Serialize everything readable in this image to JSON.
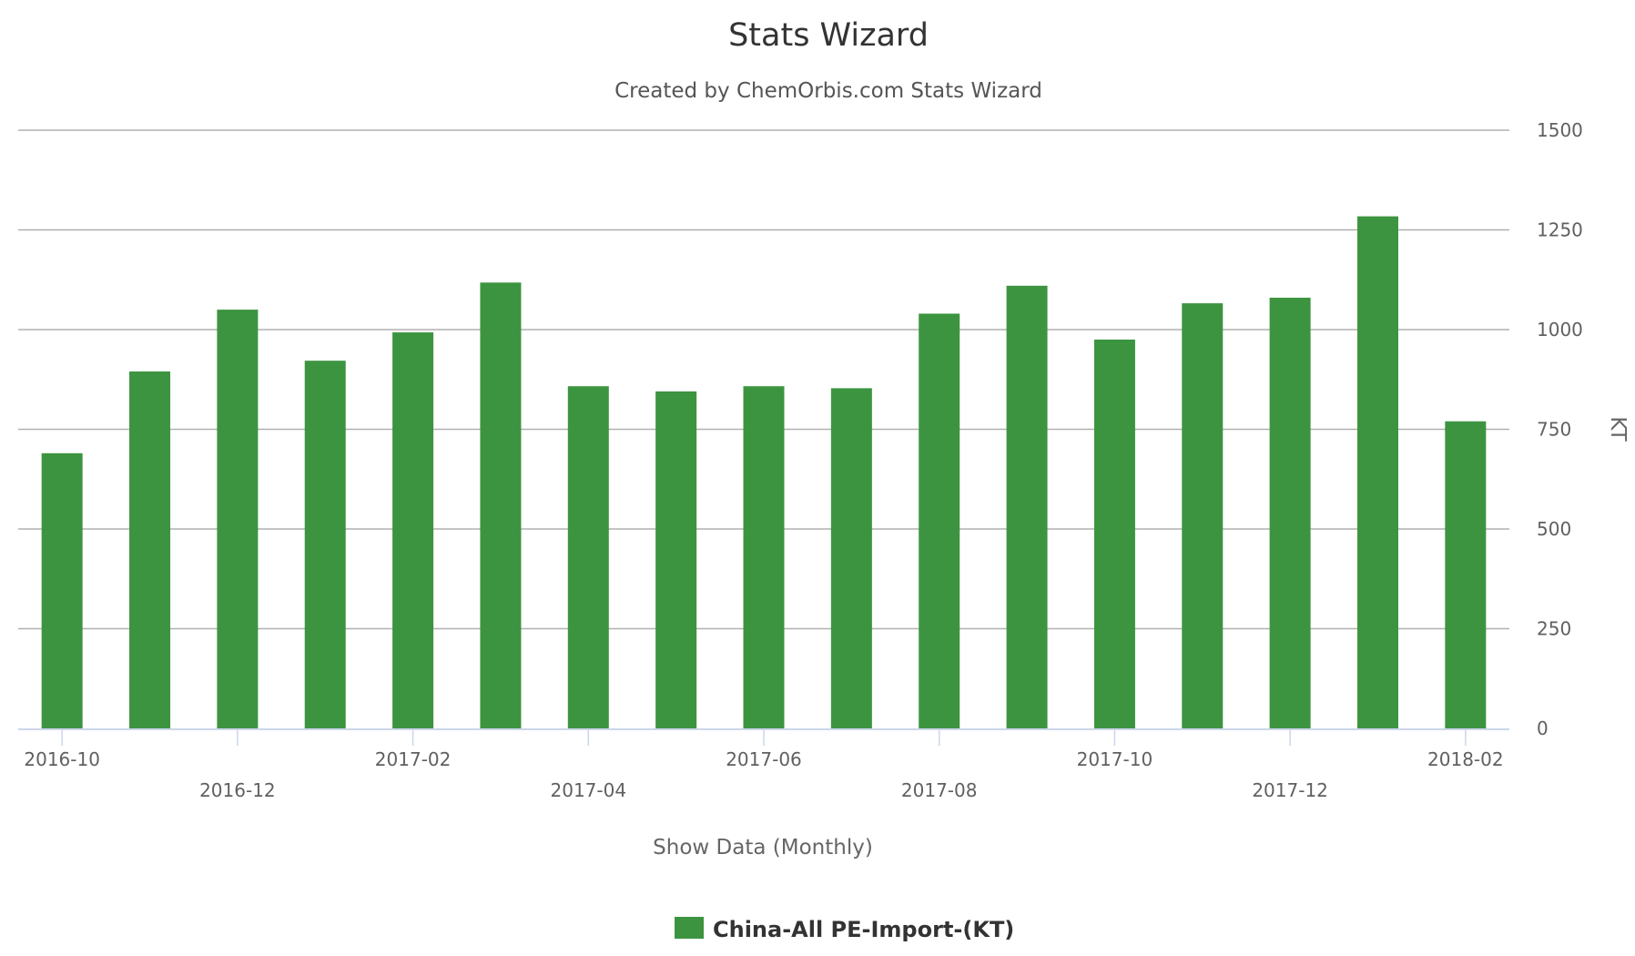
{
  "title": "Stats Wizard",
  "subtitle": "Created by ChemOrbis.com Stats Wizard",
  "chart_data": {
    "type": "bar",
    "categories": [
      "2016-10",
      "2016-11",
      "2016-12",
      "2017-01",
      "2017-02",
      "2017-03",
      "2017-04",
      "2017-05",
      "2017-06",
      "2017-07",
      "2017-08",
      "2017-09",
      "2017-10",
      "2017-11",
      "2017-12",
      "2018-01",
      "2018-02"
    ],
    "x_tick_labels": [
      "2016-10",
      "2016-12",
      "2017-02",
      "2017-04",
      "2017-06",
      "2017-08",
      "2017-10",
      "2017-12",
      "2018-02"
    ],
    "y_tick_labels": [
      "0",
      "250",
      "500",
      "750",
      "1000",
      "1250",
      "1500"
    ],
    "series": [
      {
        "name": "China-All PE-Import-(KT)",
        "color": "#3d9440",
        "values": [
          690,
          895,
          1050,
          922,
          993,
          1118,
          858,
          845,
          858,
          853,
          1040,
          1110,
          975,
          1066,
          1080,
          1284,
          770
        ]
      }
    ],
    "xlabel": "Show Data (Monthly)",
    "ylabel": "KT",
    "ylim": [
      0,
      1500
    ],
    "y_axis_side": "right",
    "grid": true,
    "legend_position": "bottom-center"
  }
}
